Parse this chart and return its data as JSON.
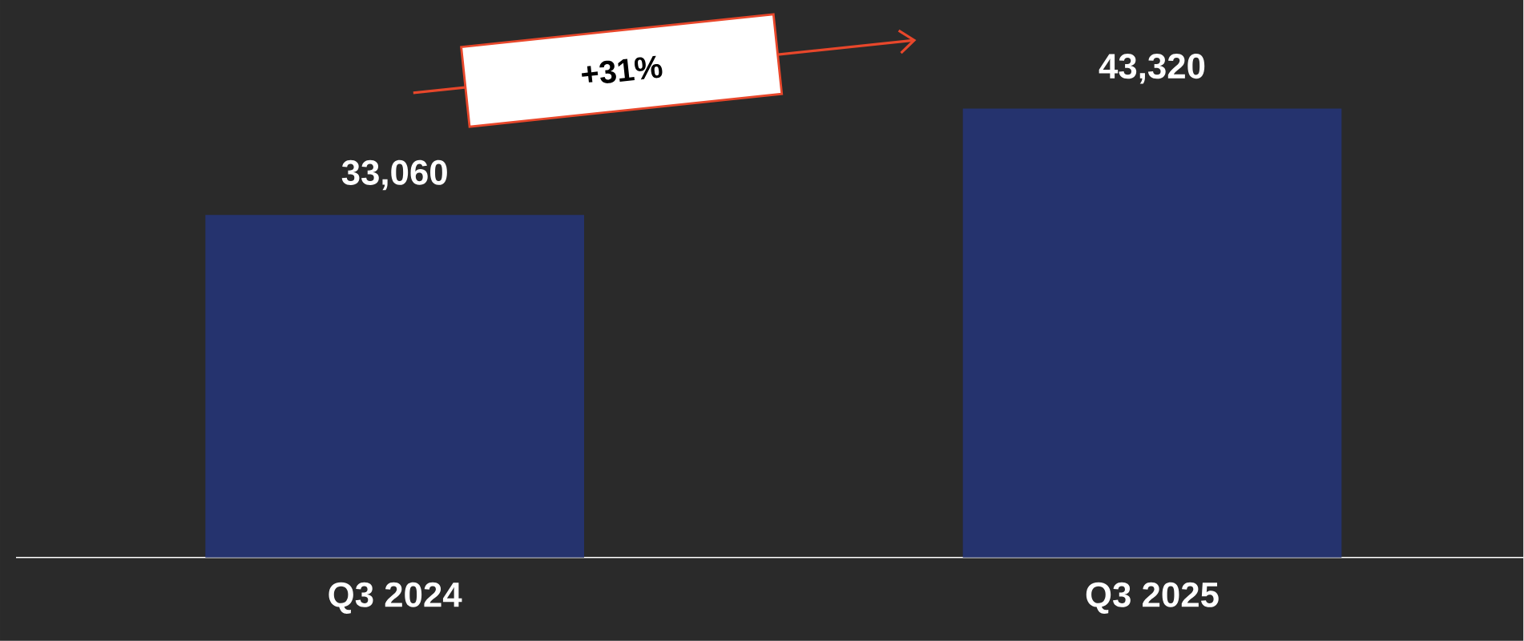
{
  "chart_data": {
    "type": "bar",
    "categories": [
      "Q3 2024",
      "Q3 2025"
    ],
    "values": [
      33060,
      43320
    ],
    "value_labels": [
      "33,060",
      "43,320"
    ],
    "color": "#25336e",
    "ylim": [
      0,
      53800
    ],
    "annotations": [
      "+31%"
    ]
  }
}
